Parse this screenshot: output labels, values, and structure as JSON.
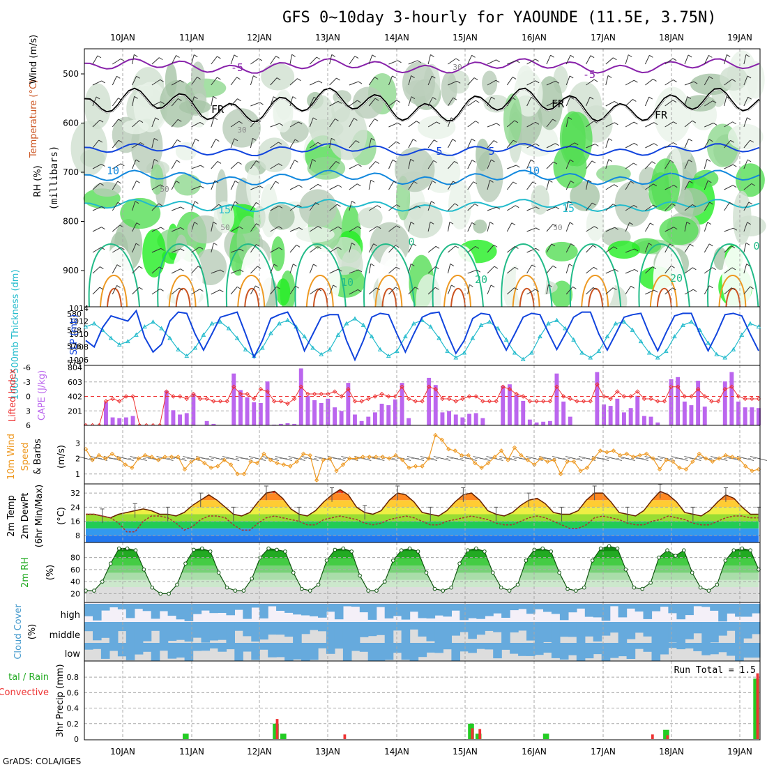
{
  "title": "GFS 0~10day 3-hourly for YAOUNDE (11.5E, 3.75N)",
  "footer": "GrADS: COLA/IGES",
  "colors": {
    "grid": "#a8a8a8",
    "frame": "#000000",
    "green": "#22cc22",
    "red": "#ee3333",
    "purple": "#bb66ee",
    "orange": "#ee9922",
    "blue": "#1144dd",
    "cyan": "#22bbcc",
    "cloud": "#66aadd",
    "cloudbg": "#dddddd"
  },
  "chart_data": {
    "type": "meteogram",
    "days": [
      "10JAN",
      "11JAN",
      "12JAN",
      "13JAN",
      "14JAN",
      "15JAN",
      "16JAN",
      "17JAN",
      "18JAN",
      "19JAN"
    ],
    "panels": {
      "upper": {
        "label_rh": "RH (%)",
        "label_temp": "Temperature (°C)",
        "label_wind": "Wind (m/s)",
        "ylabel": "(millibars)",
        "yticks": [
          "500",
          "600",
          "700",
          "800",
          "900"
        ],
        "contour_labels": [
          "-5",
          "-5",
          "FR",
          "FR",
          "FR",
          "10",
          "10",
          "15",
          "15",
          "5",
          "5",
          "0",
          "0",
          "10",
          "20",
          "20",
          "30",
          "30",
          "50",
          "50",
          "50"
        ]
      },
      "slp": {
        "label_left": "1000-500mb Thickness (dm)",
        "label_right": "SLP (mb)",
        "yticks_left": [
          "580",
          "578",
          "576",
          "574"
        ],
        "yticks_right": [
          "1014",
          "1012",
          "1010",
          "1008",
          "1006"
        ],
        "slp_mb": [
          1009.0,
          1008.0,
          1011.0,
          1012.8,
          1012.4,
          1012.0,
          1013.6,
          1009.5,
          1007.2,
          1008.4,
          1012.0,
          1013.4,
          1013.2,
          1010.0,
          1007.5,
          1010.0,
          1012.6,
          1013.0,
          1013.4,
          1010.0,
          1006.4,
          1009.0,
          1012.4,
          1013.0,
          1013.4,
          1011.0,
          1007.4,
          1010.0,
          1012.6,
          1013.0,
          1013.0,
          1009.0,
          1006.0,
          1009.0,
          1012.6,
          1013.2,
          1013.0,
          1010.0,
          1007.2,
          1010.0,
          1012.6,
          1013.2,
          1013.4,
          1010.0,
          1007.0,
          1009.0,
          1012.4,
          1013.2,
          1013.0,
          1010.0,
          1007.5,
          1010.0,
          1012.6,
          1013.2,
          1013.0,
          1010.2,
          1007.6,
          1010.0,
          1012.6,
          1013.4,
          1013.4,
          1010.0,
          1007.5,
          1010.0,
          1012.6,
          1013.0,
          1013.2,
          1010.0,
          1007.4,
          1010.2,
          1012.8,
          1013.2,
          1013.2,
          1010.0,
          1007.4,
          1010.0,
          1013.0,
          1013.2,
          1012.8,
          1010.0,
          1007.4
        ],
        "thickness_dm": [
          578.4,
          578.8,
          578.0,
          577.0,
          576.2,
          576.6,
          577.4,
          578.4,
          579.0,
          578.2,
          577.0,
          575.6,
          574.8,
          575.8,
          577.4,
          578.8,
          579.0,
          578.2,
          577.0,
          575.6,
          574.8,
          575.8,
          577.6,
          578.8,
          579.2,
          578.4,
          577.2,
          575.8,
          575.0,
          575.6,
          577.4,
          578.8,
          579.4,
          578.6,
          577.2,
          575.6,
          574.8,
          575.4,
          577.2,
          578.8,
          579.2,
          578.4,
          577.0,
          575.4,
          574.6,
          575.2,
          577.0,
          578.6,
          579.0,
          578.2,
          576.8,
          575.2,
          574.4,
          575.2,
          577.2,
          578.8,
          579.2,
          578.2,
          576.8,
          575.2,
          574.6,
          575.4,
          577.2,
          578.8,
          579.0,
          578.0,
          576.6,
          575.2,
          574.6,
          575.4,
          577.2,
          578.6,
          579.0,
          578.0,
          576.4,
          575.0,
          574.6,
          575.6,
          577.4,
          578.8,
          578.4
        ]
      },
      "cape": {
        "label_left": "Lifted Index",
        "label_right": "CAPE (J/kg)",
        "yticks_left": [
          "-6",
          "-3",
          "0",
          "3",
          "6"
        ],
        "yticks_right": [
          "804",
          "603",
          "402",
          "201"
        ],
        "cape_jkg": [
          0,
          0,
          0,
          320,
          110,
          100,
          110,
          130,
          0,
          0,
          0,
          0,
          480,
          210,
          150,
          170,
          440,
          0,
          60,
          20,
          0,
          0,
          720,
          490,
          390,
          320,
          310,
          610,
          10,
          20,
          30,
          20,
          790,
          410,
          350,
          310,
          370,
          250,
          200,
          590,
          150,
          60,
          120,
          180,
          300,
          280,
          360,
          590,
          100,
          0,
          0,
          660,
          560,
          180,
          200,
          150,
          110,
          160,
          170,
          100,
          0,
          0,
          550,
          570,
          420,
          340,
          80,
          40,
          50,
          60,
          720,
          330,
          120,
          0,
          0,
          0,
          740,
          290,
          270,
          370,
          180,
          240,
          410,
          130,
          120,
          40,
          0,
          640,
          670,
          330,
          280,
          620,
          260,
          0,
          0,
          610,
          740,
          330,
          250,
          250,
          240
        ],
        "lifted_index": [
          6,
          6,
          6,
          1,
          0.5,
          1,
          0,
          0,
          6,
          6,
          6,
          6,
          -1,
          0,
          0,
          0.5,
          -0.5,
          0.5,
          0.5,
          1,
          1,
          1,
          -2,
          -0.5,
          -0.5,
          0.5,
          -1.5,
          -1,
          1,
          1,
          1.5,
          0.5,
          -2,
          -0.5,
          -0.5,
          -0.5,
          -0.5,
          -1,
          0,
          -1.5,
          1,
          1,
          0.5,
          0,
          -0.5,
          0,
          0,
          -2,
          0.5,
          1,
          1,
          -2,
          -1.5,
          0.5,
          0.5,
          1,
          0.5,
          0,
          0,
          1,
          1,
          1,
          -2,
          -1.5,
          -0.5,
          0,
          1,
          1,
          1,
          1,
          -2,
          0,
          0.5,
          1,
          1,
          1,
          -2.5,
          0,
          0.5,
          -1,
          0,
          0,
          -1,
          0.5,
          0.5,
          1,
          1,
          -2,
          -2,
          0,
          0,
          -1.5,
          0,
          1,
          1,
          -1.5,
          -2,
          0,
          0.5,
          0.5,
          0.5
        ]
      },
      "wind10": {
        "label_left": "10m Wind Speed & Barbs",
        "ylabel": "(m/s)",
        "yticks": [
          "3",
          "2",
          "1"
        ],
        "speed_ms": [
          2.6,
          1.9,
          2.2,
          2.0,
          2.3,
          2.0,
          1.6,
          1.4,
          2.0,
          2.2,
          2.1,
          1.9,
          2.1,
          2.1,
          2.1,
          1.3,
          1.8,
          2.0,
          1.7,
          1.4,
          1.5,
          1.9,
          1.6,
          1.0,
          1.0,
          1.8,
          1.7,
          2.3,
          1.9,
          1.7,
          1.6,
          1.5,
          1.8,
          2.3,
          2.2,
          0.6,
          1.9,
          2.0,
          1.2,
          1.6,
          2.0,
          2.0,
          2.1,
          2.1,
          2.1,
          2.1,
          2.0,
          2.2,
          1.9,
          1.4,
          1.5,
          1.5,
          2.0,
          3.5,
          3.2,
          2.6,
          2.5,
          2.2,
          2.2,
          1.7,
          1.4,
          1.7,
          2.1,
          2.5,
          1.9,
          2.7,
          2.2,
          1.9,
          1.6,
          2.0,
          1.8,
          1.9,
          1.0,
          1.8,
          1.8,
          1.2,
          1.4,
          2.0,
          2.5,
          2.4,
          2.5,
          2.2,
          2.3,
          2.1,
          2.2,
          2.3,
          2.0,
          1.3,
          1.9,
          1.8,
          1.4,
          1.3,
          1.8,
          2.3,
          2.0,
          1.8,
          2.0,
          2.2,
          2.1,
          2.0,
          1.5,
          1.2,
          1.3
        ]
      },
      "temp2m": {
        "label_left": "2m Temp 2m DewPt (6hr Min/Max)",
        "ylabel": "(°C)",
        "yticks": [
          "32",
          "24",
          "16",
          "8"
        ],
        "temp_c": [
          20,
          20,
          19,
          18,
          20,
          21,
          22,
          23,
          22,
          20,
          20,
          19,
          21,
          25,
          28,
          31,
          28,
          24,
          20,
          19,
          21,
          27,
          32,
          33,
          29,
          23,
          20,
          19,
          22,
          27,
          31,
          34,
          31,
          24,
          21,
          20,
          22,
          28,
          32,
          31,
          27,
          21,
          20,
          19,
          22,
          27,
          31,
          32,
          28,
          22,
          20,
          19,
          21,
          25,
          28,
          29,
          26,
          21,
          20,
          20,
          22,
          28,
          32,
          32,
          27,
          21,
          20,
          19,
          22,
          28,
          33,
          31,
          27,
          21,
          20,
          19,
          22,
          27,
          31,
          29,
          24,
          20,
          20
        ],
        "dewpt_c": [
          20,
          20,
          19,
          18,
          15,
          10,
          10,
          16,
          19,
          19,
          18,
          15,
          11,
          13,
          17,
          19,
          19,
          18,
          14,
          11,
          11,
          15,
          18,
          19,
          18,
          17,
          16,
          14,
          14,
          17,
          18,
          19,
          18,
          17,
          15,
          14,
          15,
          17,
          18,
          19,
          18,
          16,
          14,
          14,
          16,
          17,
          18,
          19,
          18,
          17,
          15,
          14,
          14,
          16,
          18,
          19,
          18,
          16,
          14,
          12,
          12,
          14,
          18,
          19,
          18,
          17,
          15,
          14,
          14,
          16,
          17,
          19,
          18,
          17,
          15,
          14,
          14,
          16,
          18,
          19,
          19,
          18,
          18
        ]
      },
      "rh2m": {
        "label_left": "2m RH",
        "ylabel": "(%)",
        "yticks": [
          "80",
          "60",
          "40",
          "20"
        ],
        "rh_pct": [
          25,
          25,
          40,
          70,
          95,
          95,
          92,
          60,
          30,
          20,
          20,
          35,
          70,
          93,
          95,
          90,
          55,
          30,
          25,
          25,
          45,
          80,
          95,
          93,
          90,
          55,
          28,
          25,
          35,
          75,
          93,
          95,
          90,
          50,
          25,
          25,
          40,
          75,
          92,
          95,
          90,
          55,
          28,
          25,
          30,
          70,
          92,
          95,
          90,
          55,
          30,
          25,
          35,
          75,
          93,
          95,
          90,
          55,
          28,
          25,
          30,
          75,
          95,
          99,
          95,
          60,
          30,
          28,
          38,
          80,
          92,
          83,
          92,
          55,
          30,
          25,
          35,
          75,
          92,
          95,
          92,
          60
        ]
      },
      "cloud": {
        "label_left": "Cloud Cover (%)",
        "levels": [
          "high",
          "middle",
          "low"
        ]
      },
      "precip": {
        "label_left": "Total / Rain Convective",
        "ylabel": "3hr Precip (mm)",
        "yticks": [
          "0.8",
          "0.6",
          "0.4",
          "0.2",
          "0"
        ],
        "annotation": "Run Total = 1.5",
        "total_mm": [
          0,
          0,
          0,
          0,
          0,
          0,
          0,
          0,
          0,
          0,
          0,
          0,
          0,
          0.07,
          0,
          0,
          0,
          0,
          0,
          0,
          0,
          0,
          0,
          0,
          0,
          0.2,
          0.07,
          0,
          0,
          0,
          0,
          0,
          0,
          0,
          0,
          0,
          0,
          0,
          0,
          0,
          0,
          0,
          0,
          0,
          0,
          0,
          0,
          0,
          0,
          0,
          0,
          0.2,
          0.07,
          0,
          0,
          0,
          0,
          0,
          0,
          0,
          0,
          0.07,
          0,
          0,
          0,
          0,
          0,
          0,
          0,
          0,
          0,
          0,
          0,
          0,
          0,
          0,
          0,
          0.12,
          0,
          0,
          0,
          0,
          0,
          0,
          0,
          0,
          0,
          0,
          0,
          0.78
        ],
        "conv_mm": [
          0,
          0,
          0,
          0,
          0,
          0,
          0,
          0,
          0,
          0,
          0,
          0,
          0,
          0,
          0,
          0,
          0,
          0,
          0,
          0,
          0,
          0,
          0,
          0,
          0,
          0.26,
          0,
          0,
          0,
          0,
          0,
          0,
          0,
          0,
          0.06,
          0,
          0,
          0,
          0,
          0,
          0,
          0,
          0,
          0,
          0,
          0,
          0,
          0,
          0,
          0,
          0,
          0.14,
          0.13,
          0,
          0,
          0,
          0,
          0,
          0,
          0,
          0,
          0,
          0,
          0,
          0,
          0,
          0,
          0,
          0,
          0,
          0,
          0,
          0,
          0,
          0,
          0.06,
          0,
          0.05,
          0,
          0,
          0,
          0,
          0,
          0,
          0,
          0,
          0,
          0,
          0,
          0.85
        ]
      }
    }
  }
}
